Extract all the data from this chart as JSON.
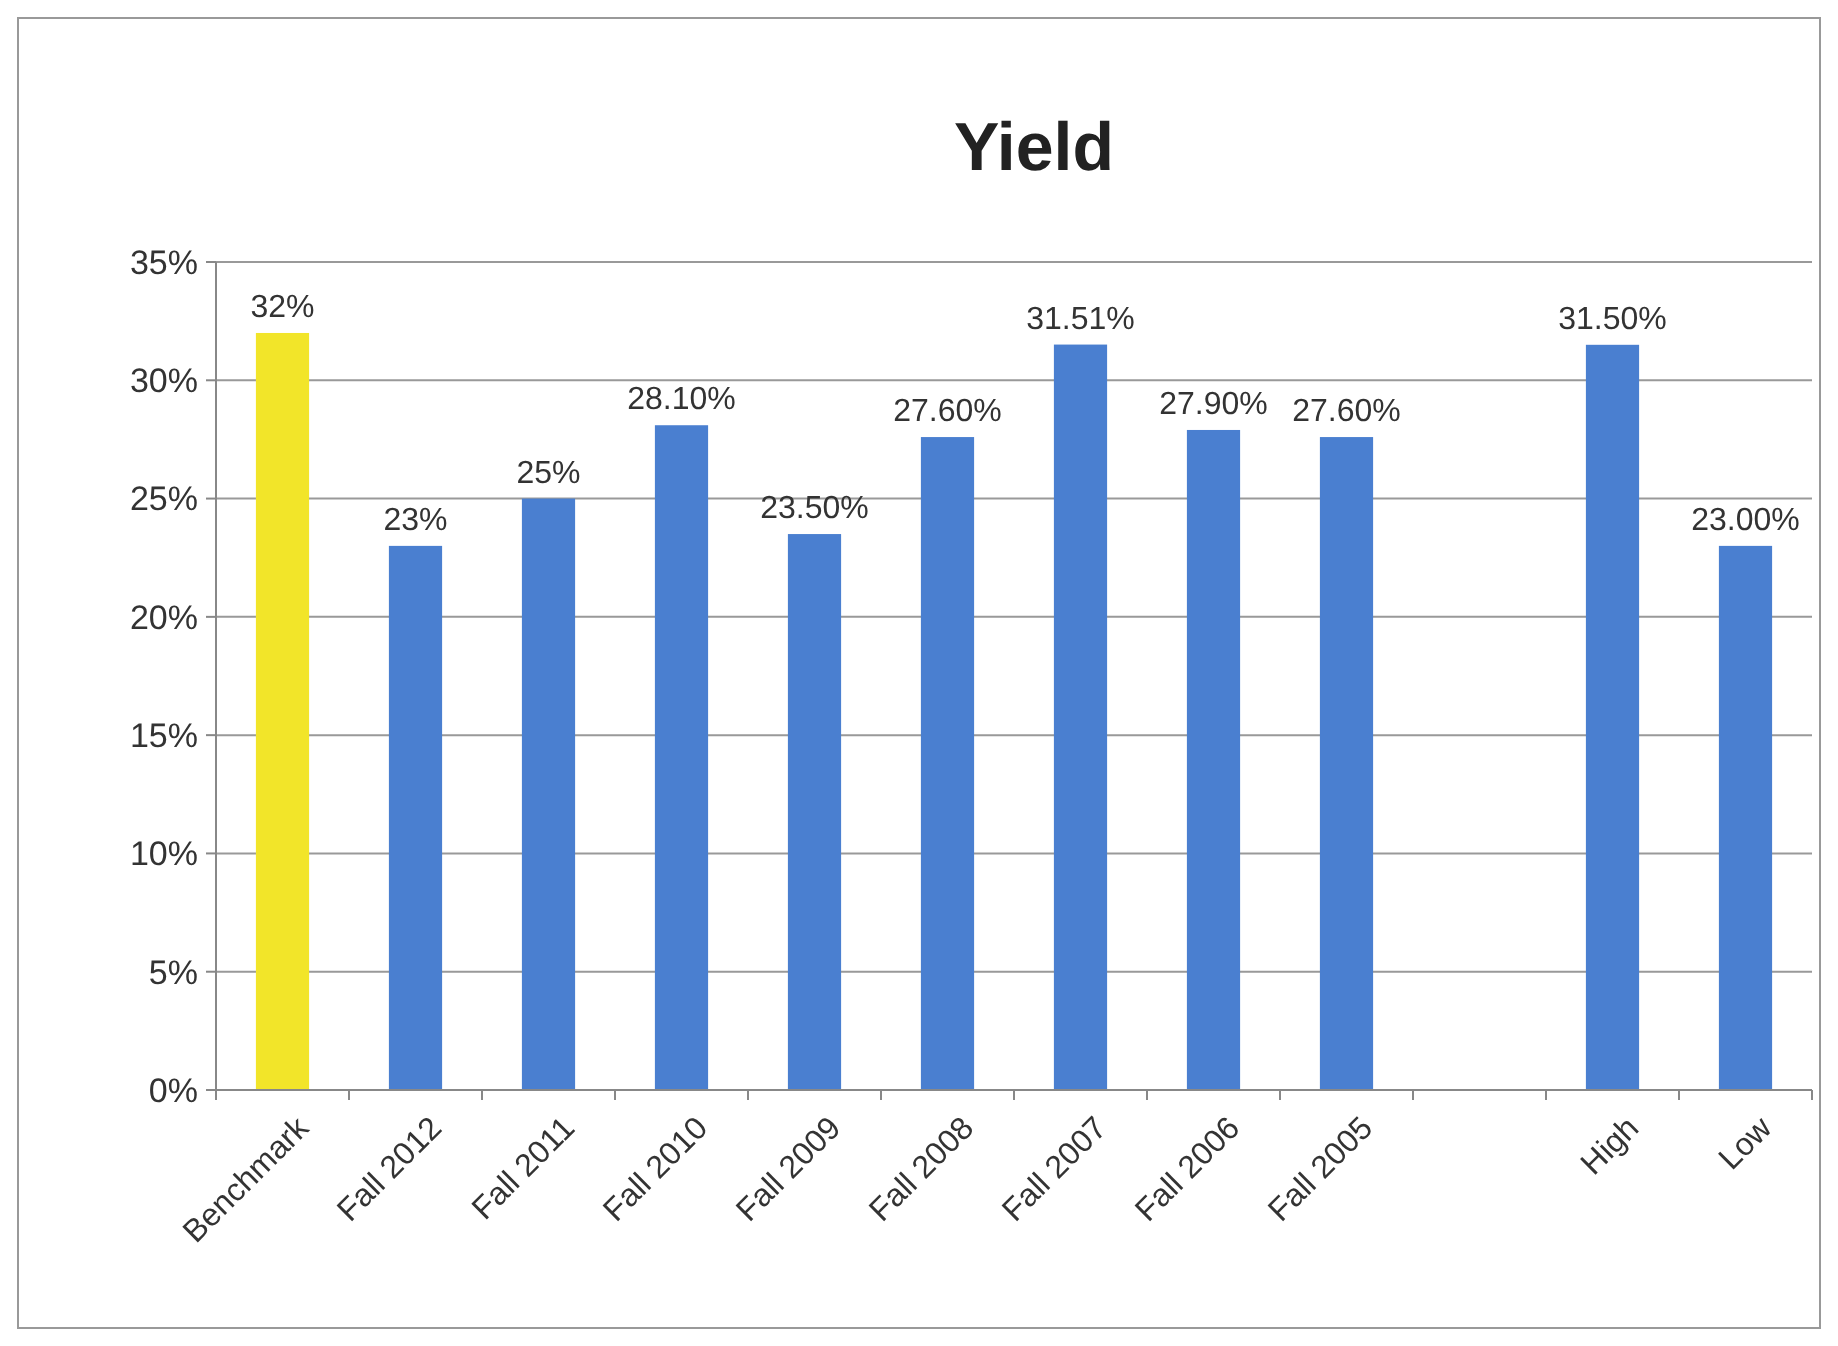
{
  "chart_data": {
    "type": "bar",
    "title": "Yield",
    "categories": [
      "Benchmark",
      "Fall 2012",
      "Fall 2011",
      "Fall 2010",
      "Fall 2009",
      "Fall 2008",
      "Fall 2007",
      "Fall 2006",
      "Fall 2005",
      null,
      "High",
      "Low"
    ],
    "values": [
      32,
      23,
      25,
      28.1,
      23.5,
      27.6,
      31.51,
      27.9,
      27.6,
      null,
      31.5,
      23
    ],
    "colors": [
      "#f2e529",
      "#4a7fd0",
      "#4a7fd0",
      "#4a7fd0",
      "#4a7fd0",
      "#4a7fd0",
      "#4a7fd0",
      "#4a7fd0",
      "#4a7fd0",
      null,
      "#4a7fd0",
      "#4a7fd0"
    ],
    "value_labels": [
      "32%",
      "23%",
      "25%",
      "28.10%",
      "23.50%",
      "27.60%",
      "31.51%",
      "27.90%",
      "27.60%",
      null,
      "31.50%",
      "23.00%"
    ],
    "ylim": [
      0,
      35
    ],
    "yticks": [
      {
        "value": 0,
        "label": "0%"
      },
      {
        "value": 5,
        "label": "5%"
      },
      {
        "value": 10,
        "label": "10%"
      },
      {
        "value": 15,
        "label": "15%"
      },
      {
        "value": 20,
        "label": "20%"
      },
      {
        "value": 25,
        "label": "25%"
      },
      {
        "value": 30,
        "label": "30%"
      },
      {
        "value": 35,
        "label": "35%"
      }
    ],
    "grid": "y"
  }
}
